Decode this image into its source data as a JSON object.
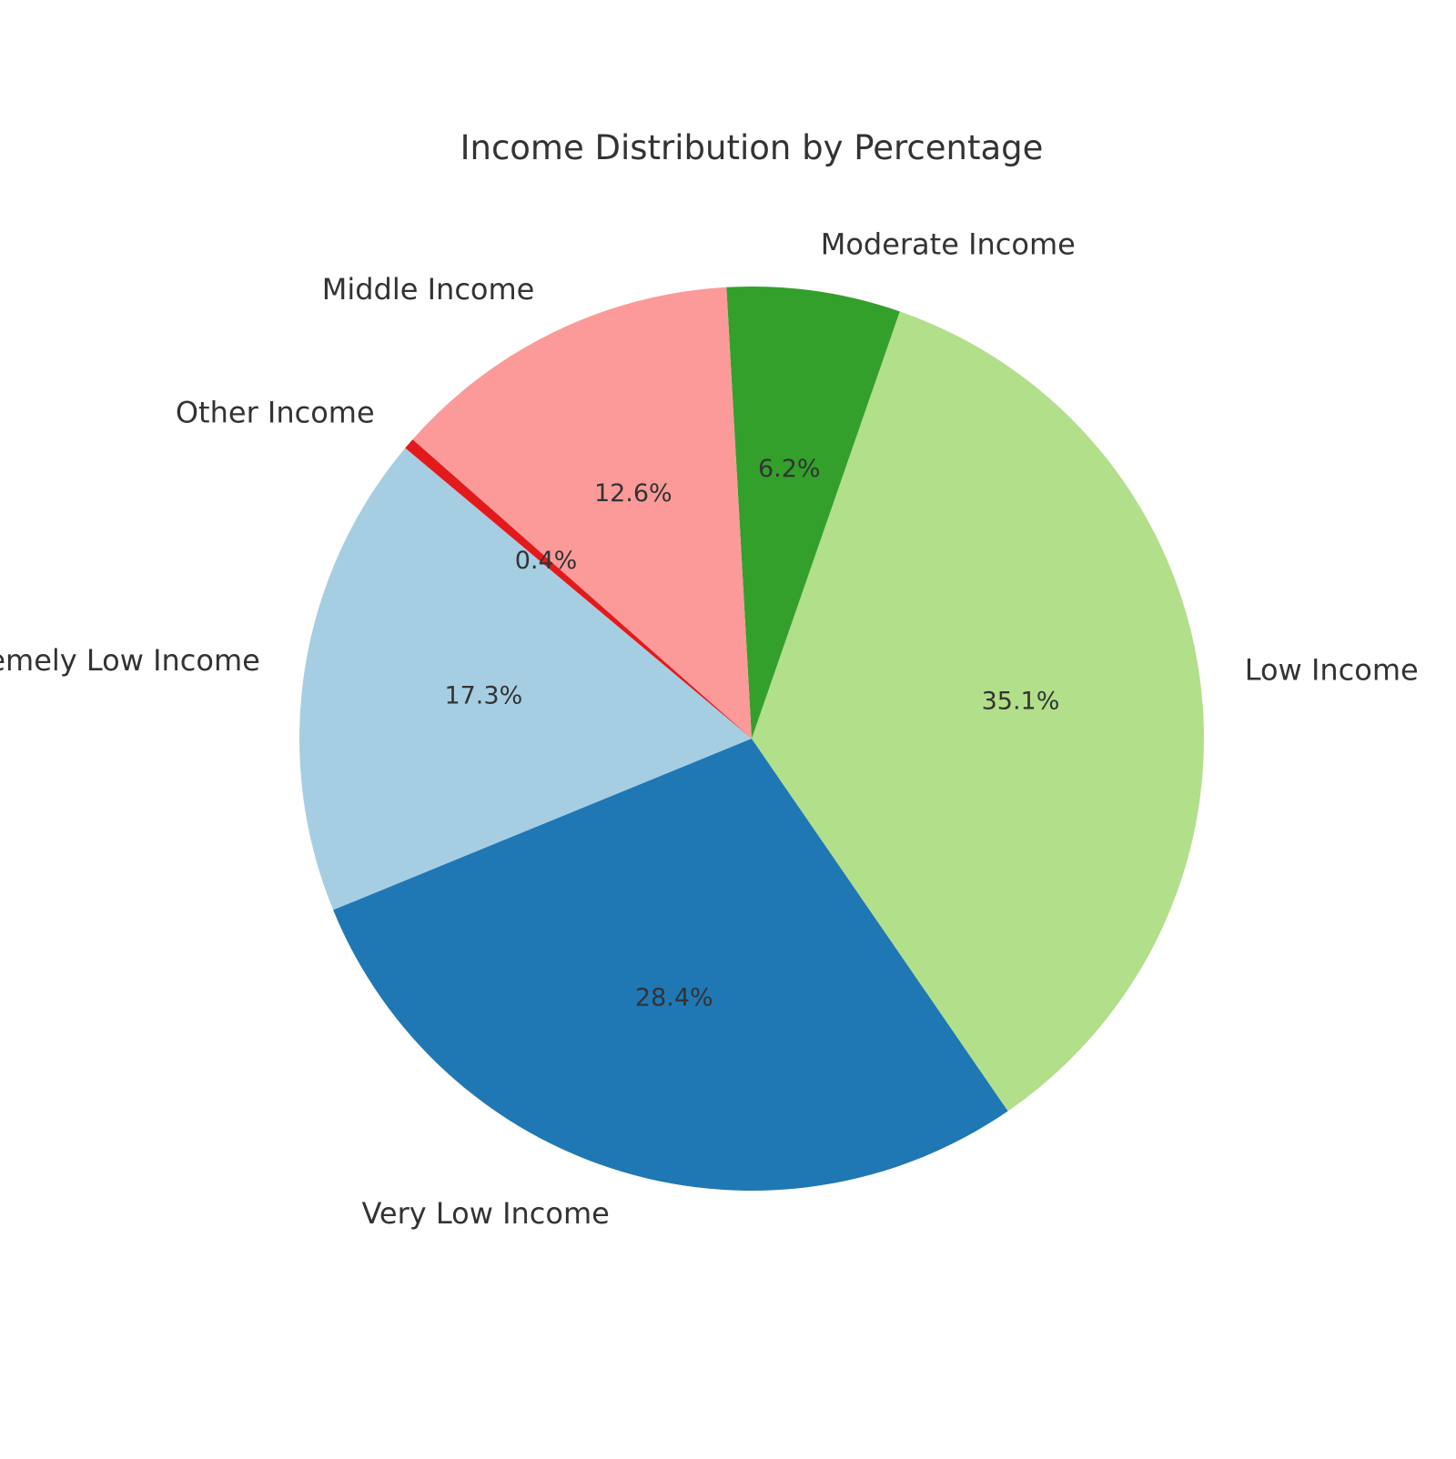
{
  "chart_data": {
    "type": "pie",
    "title": "Income Distribution by Percentage",
    "slices": [
      {
        "label": "Extremely Low Income",
        "value": 17.3,
        "pct_label": "17.3%",
        "color": "#a6cee3"
      },
      {
        "label": "Very Low Income",
        "value": 28.4,
        "pct_label": "28.4%",
        "color": "#1f78b4"
      },
      {
        "label": "Low Income",
        "value": 35.1,
        "pct_label": "35.1%",
        "color": "#b2df8a"
      },
      {
        "label": "Moderate Income",
        "value": 6.2,
        "pct_label": "6.2%",
        "color": "#33a02c"
      },
      {
        "label": "Middle Income",
        "value": 12.6,
        "pct_label": "12.6%",
        "color": "#fb9a99"
      },
      {
        "label": "Other Income",
        "value": 0.4,
        "pct_label": "0.4%",
        "color": "#e31a1c"
      }
    ],
    "start_angle_deg": 140,
    "direction": "counterclockwise"
  }
}
